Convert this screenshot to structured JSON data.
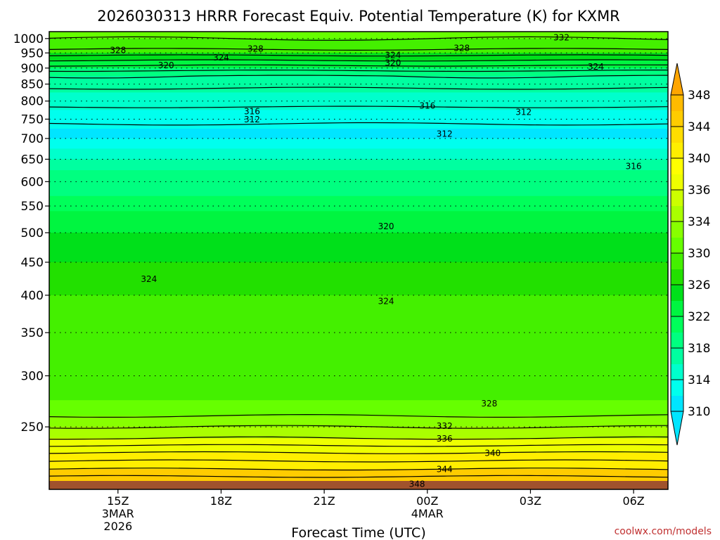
{
  "chart_data": {
    "type": "heatmap",
    "title": "2026030313 HRRR Forecast Equiv. Potential Temperature (K) for KXMR",
    "xlabel": "Forecast Time (UTC)",
    "ylabel": "",
    "credit": "coolwx.com/models",
    "x_ticks": [
      {
        "label": "15Z",
        "sub1": "3MAR",
        "sub2": "2026",
        "hour": 15
      },
      {
        "label": "18Z",
        "sub1": "",
        "sub2": "",
        "hour": 18
      },
      {
        "label": "21Z",
        "sub1": "",
        "sub2": "",
        "hour": 21
      },
      {
        "label": "00Z",
        "sub1": "4MAR",
        "sub2": "",
        "hour": 24
      },
      {
        "label": "03Z",
        "sub1": "",
        "sub2": "",
        "hour": 27
      },
      {
        "label": "06Z",
        "sub1": "",
        "sub2": "",
        "hour": 30
      }
    ],
    "xlim": [
      13,
      31
    ],
    "y_axis": {
      "type": "log-pressure",
      "unit": "hPa",
      "range": [
        1025,
        200
      ],
      "ticks": [
        250,
        300,
        350,
        400,
        450,
        500,
        550,
        600,
        650,
        700,
        750,
        800,
        850,
        900,
        950,
        1000
      ]
    },
    "colorbar": {
      "levels": [
        310,
        312,
        314,
        316,
        318,
        320,
        322,
        324,
        326,
        328,
        330,
        332,
        334,
        336,
        338,
        340,
        342,
        344,
        346,
        348,
        350
      ],
      "labels": [
        310,
        314,
        318,
        322,
        326,
        330,
        334,
        336,
        340,
        344,
        348
      ],
      "colors": [
        "#00e5ff",
        "#00ffee",
        "#00ffcc",
        "#00ffa0",
        "#00ff80",
        "#00ff5a",
        "#00f540",
        "#00e01a",
        "#22e000",
        "#44f000",
        "#66ff00",
        "#88ff00",
        "#aaff00",
        "#ccff00",
        "#eeff00",
        "#ffff00",
        "#ffee00",
        "#ffdd00",
        "#ffcc00",
        "#ffbb00"
      ]
    },
    "contour_interval": 2,
    "contour_labels": [
      {
        "value": 348,
        "hour": 23.7,
        "p": 204
      },
      {
        "value": 344,
        "hour": 24.5,
        "p": 215
      },
      {
        "value": 340,
        "hour": 25.9,
        "p": 228
      },
      {
        "value": 336,
        "hour": 24.5,
        "p": 240
      },
      {
        "value": 332,
        "hour": 24.5,
        "p": 251
      },
      {
        "value": 328,
        "hour": 25.8,
        "p": 272
      },
      {
        "value": 324,
        "hour": 15.9,
        "p": 424
      },
      {
        "value": 324,
        "hour": 22.8,
        "p": 392
      },
      {
        "value": 320,
        "hour": 22.8,
        "p": 512
      },
      {
        "value": 316,
        "hour": 30.0,
        "p": 635
      },
      {
        "value": 312,
        "hour": 24.5,
        "p": 712
      },
      {
        "value": 312,
        "hour": 18.9,
        "p": 750
      },
      {
        "value": 316,
        "hour": 18.9,
        "p": 772
      },
      {
        "value": 316,
        "hour": 24.0,
        "p": 788
      },
      {
        "value": 312,
        "hour": 26.8,
        "p": 770
      },
      {
        "value": 320,
        "hour": 16.4,
        "p": 910
      },
      {
        "value": 324,
        "hour": 18.0,
        "p": 935
      },
      {
        "value": 320,
        "hour": 23.0,
        "p": 918
      },
      {
        "value": 324,
        "hour": 23.0,
        "p": 943
      },
      {
        "value": 328,
        "hour": 15.0,
        "p": 960
      },
      {
        "value": 328,
        "hour": 19.0,
        "p": 965
      },
      {
        "value": 328,
        "hour": 25.0,
        "p": 968
      },
      {
        "value": 324,
        "hour": 28.9,
        "p": 905
      },
      {
        "value": 332,
        "hour": 27.9,
        "p": 1005
      }
    ]
  }
}
